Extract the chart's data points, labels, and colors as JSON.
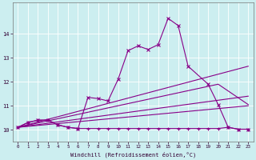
{
  "xlabel": "Windchill (Refroidissement éolien,°C)",
  "bg_color": "#cceef0",
  "line_color": "#880088",
  "grid_color": "#aadddd",
  "xlim": [
    -0.5,
    23.5
  ],
  "ylim": [
    9.5,
    15.3
  ],
  "yticks": [
    10,
    11,
    12,
    13,
    14
  ],
  "xticks": [
    0,
    1,
    2,
    3,
    4,
    5,
    6,
    7,
    8,
    9,
    10,
    11,
    12,
    13,
    14,
    15,
    16,
    17,
    18,
    19,
    20,
    21,
    22,
    23
  ],
  "main_line": {
    "x": [
      0,
      1,
      2,
      3,
      4,
      5,
      6,
      7,
      8,
      9,
      10,
      11,
      12,
      13,
      14,
      15,
      16,
      17,
      19,
      20,
      21,
      22,
      23
    ],
    "y": [
      10.1,
      10.3,
      10.4,
      10.4,
      10.2,
      10.1,
      10.05,
      11.35,
      11.3,
      11.2,
      12.1,
      13.3,
      13.5,
      13.35,
      13.55,
      14.65,
      14.35,
      12.65,
      11.9,
      11.05,
      10.1,
      10.02,
      10.02
    ]
  },
  "flat_line": {
    "x": [
      0,
      1,
      2,
      3,
      4,
      5,
      6,
      7,
      8,
      9,
      10,
      11,
      12,
      13,
      14,
      15,
      16,
      17,
      18,
      19,
      20,
      21,
      22,
      23
    ],
    "y": [
      10.1,
      10.3,
      10.4,
      10.4,
      10.2,
      10.1,
      10.05,
      10.05,
      10.05,
      10.05,
      10.05,
      10.05,
      10.05,
      10.05,
      10.05,
      10.05,
      10.05,
      10.05,
      10.05,
      10.05,
      10.05,
      10.1,
      10.02,
      10.02
    ]
  },
  "diag_lines": [
    {
      "x": [
        0,
        23
      ],
      "y": [
        10.1,
        12.65
      ]
    },
    {
      "x": [
        0,
        20,
        23
      ],
      "y": [
        10.1,
        11.9,
        11.05
      ]
    },
    {
      "x": [
        0,
        23
      ],
      "y": [
        10.1,
        11.4
      ]
    },
    {
      "x": [
        0,
        23
      ],
      "y": [
        10.1,
        11.0
      ]
    }
  ]
}
